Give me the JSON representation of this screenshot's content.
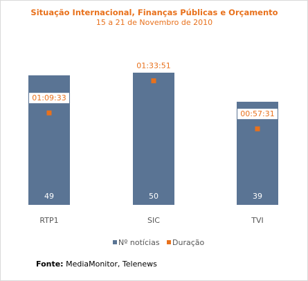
{
  "chart_data": {
    "type": "bar",
    "title": "Situação Internacional, Finanças Públicas e Orçamento",
    "subtitle": "15 a 21 de Novembro de 2010",
    "categories": [
      "RTP1",
      "SIC",
      "TVI"
    ],
    "series": [
      {
        "name": "Nº notícias",
        "type": "bar",
        "values": [
          49,
          50,
          39
        ],
        "color": "#5a7494"
      },
      {
        "name": "Duração",
        "type": "marker",
        "values": [
          "01:09:33",
          "01:33:51",
          "00:57:31"
        ],
        "seconds": [
          4173,
          5631,
          3451
        ],
        "color": "#e8711c"
      }
    ],
    "ylim_bars": [
      0,
      50
    ],
    "ylim_duration_seconds": [
      0,
      6000
    ],
    "grid": false,
    "legend_position": "bottom"
  },
  "source": {
    "label": "Fonte:",
    "text": "MediaMonitor, Telenews"
  }
}
